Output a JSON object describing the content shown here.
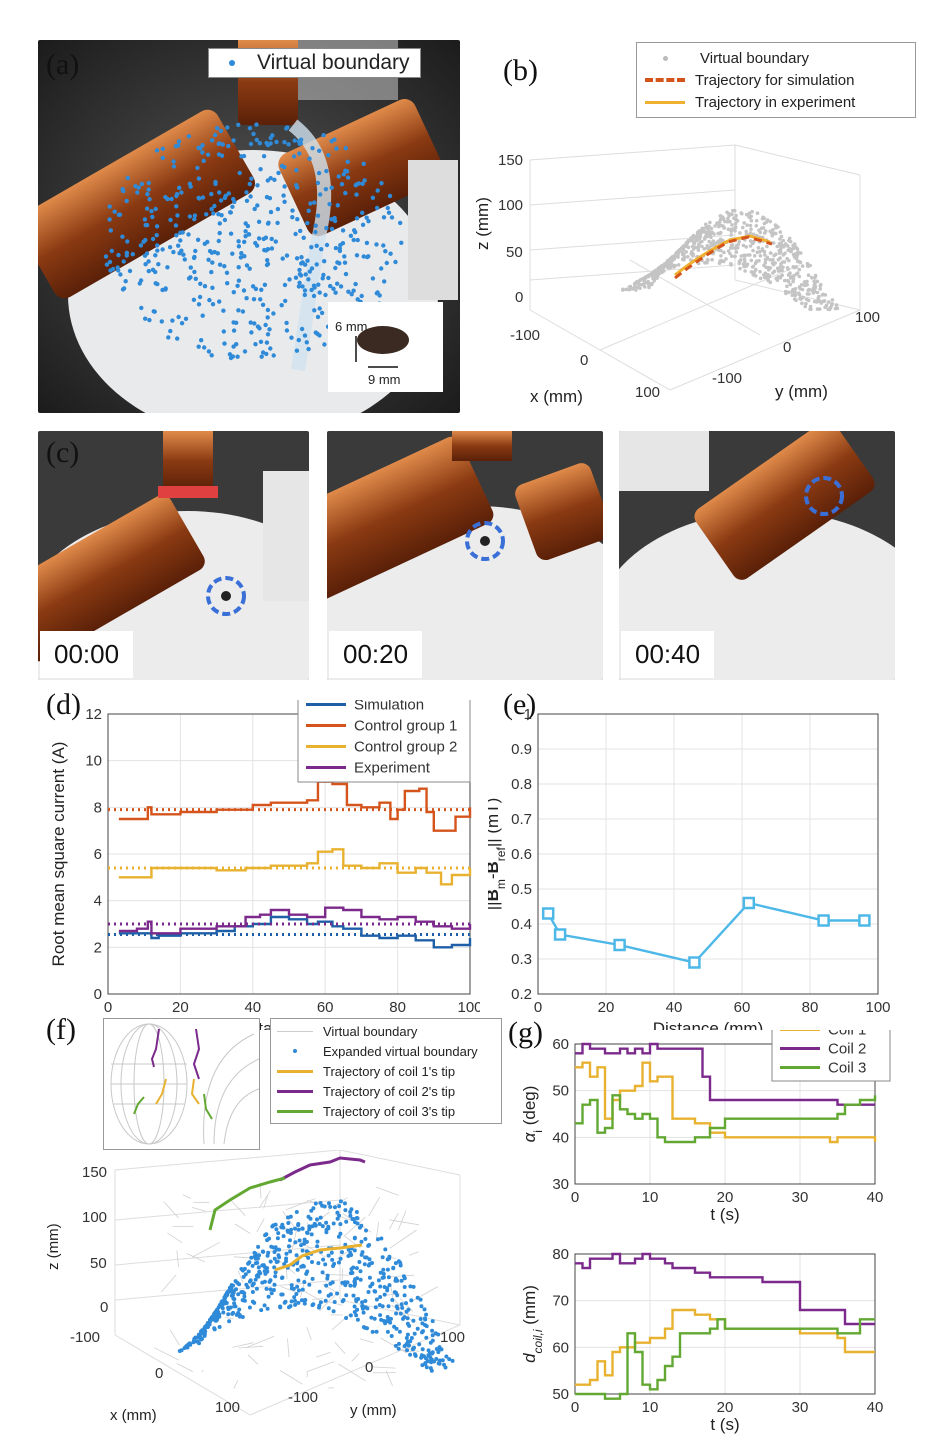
{
  "panels": {
    "a": {
      "label": "(a)",
      "legend": "Virtual boundary",
      "size_h": "6 mm",
      "size_w": "9 mm"
    },
    "b": {
      "label": "(b)",
      "legend": [
        "Virtual boundary",
        "Trajectory for simulation",
        "Trajectory in experiment"
      ],
      "zlabel": "z (mm)",
      "xlabel": "x (mm)",
      "ylabel": "y (mm)",
      "zticks": [
        "150",
        "100",
        "50",
        "0"
      ],
      "xticks": [
        "-100",
        "0",
        "100"
      ],
      "yticks": [
        "100",
        "0",
        "-100"
      ]
    },
    "c": {
      "label": "(c)",
      "times": [
        "00:00",
        "00:20",
        "00:40"
      ]
    },
    "d": {
      "label": "(d)"
    },
    "e": {
      "label": "(e)"
    },
    "f": {
      "label": "(f)",
      "legend": [
        "Virtual boundary",
        "Expanded virtual boundary",
        "Trajectory of coil 1's tip",
        "Trajectory of coil 2's tip",
        "Trajectory of coil 3's tip"
      ],
      "zlabel": "z (mm)",
      "xlabel": "x (mm)",
      "ylabel": "y (mm)",
      "zticks": [
        "150",
        "100",
        "50",
        "0",
        "-100"
      ],
      "xticks": [
        "0",
        "100"
      ],
      "yticks": [
        "100",
        "0",
        "-100"
      ]
    },
    "g": {
      "label": "(g)"
    }
  },
  "chart_data": [
    {
      "id": "d",
      "type": "line",
      "xlabel": "Distance (mm)",
      "ylabel": "Root mean square current (A)",
      "xlim": [
        0,
        100
      ],
      "ylim": [
        0,
        12
      ],
      "xticks": [
        0,
        20,
        40,
        60,
        80,
        100
      ],
      "yticks": [
        0,
        2,
        4,
        6,
        8,
        10,
        12
      ],
      "grid": true,
      "legend_position": "top-right",
      "series": [
        {
          "name": "Simulation",
          "color": "#1f5fa8",
          "dotted_level": 2.55,
          "x": [
            3,
            10,
            12,
            14,
            20,
            30,
            35,
            40,
            45,
            50,
            55,
            58,
            62,
            65,
            70,
            75,
            80,
            85,
            90,
            95,
            100
          ],
          "values": [
            2.6,
            2.6,
            2.4,
            2.5,
            2.6,
            2.7,
            2.9,
            3.0,
            3.3,
            3.2,
            3.0,
            3.1,
            2.9,
            2.8,
            2.5,
            2.4,
            2.5,
            2.3,
            2.0,
            2.1,
            2.4
          ]
        },
        {
          "name": "Control group 1",
          "color": "#d4541c",
          "dotted_level": 7.9,
          "x": [
            3,
            10,
            11,
            12,
            20,
            30,
            40,
            45,
            55,
            58,
            62,
            66,
            70,
            75,
            78,
            80,
            82,
            86,
            88,
            90,
            93,
            96,
            100
          ],
          "values": [
            7.5,
            7.5,
            8.0,
            7.7,
            7.8,
            7.9,
            8.1,
            8.2,
            8.3,
            9.1,
            9.0,
            8.1,
            8.0,
            8.2,
            7.5,
            7.9,
            8.7,
            8.8,
            7.8,
            7.0,
            7.0,
            7.6,
            8.0
          ]
        },
        {
          "name": "Control group 2",
          "color": "#e8b230",
          "dotted_level": 5.4,
          "x": [
            3,
            10,
            12,
            20,
            30,
            38,
            45,
            55,
            58,
            62,
            65,
            70,
            75,
            80,
            85,
            88,
            92,
            95,
            100
          ],
          "values": [
            5.0,
            5.0,
            5.4,
            5.4,
            5.3,
            5.4,
            5.5,
            5.6,
            6.1,
            6.2,
            5.5,
            5.4,
            5.6,
            5.2,
            5.4,
            5.2,
            4.7,
            5.1,
            5.4
          ]
        },
        {
          "name": "Experiment",
          "color": "#7b2a8b",
          "dotted_level": 3.0,
          "x": [
            3,
            8,
            11,
            12,
            20,
            30,
            38,
            42,
            45,
            50,
            55,
            60,
            65,
            70,
            75,
            80,
            85,
            90,
            95,
            100
          ],
          "values": [
            2.7,
            2.8,
            3.1,
            2.6,
            2.8,
            2.9,
            3.3,
            3.4,
            3.6,
            3.4,
            3.3,
            3.7,
            3.6,
            3.3,
            3.2,
            3.3,
            3.1,
            2.9,
            2.8,
            3.0
          ]
        }
      ]
    },
    {
      "id": "e",
      "type": "line",
      "xlabel": "Distance (mm)",
      "ylabel": "||B_m-B_ref|| (mT)",
      "xlim": [
        0,
        100
      ],
      "ylim": [
        0.2,
        1.0
      ],
      "xticks": [
        0,
        20,
        40,
        60,
        80,
        100
      ],
      "yticks": [
        0.2,
        0.3,
        0.4,
        0.5,
        0.6,
        0.7,
        0.8,
        0.9,
        1.0
      ],
      "grid": true,
      "series": [
        {
          "color": "#4db8e8",
          "marker": "square",
          "x": [
            3,
            6.5,
            24,
            46,
            62,
            84,
            96
          ],
          "values": [
            0.43,
            0.37,
            0.34,
            0.29,
            0.46,
            0.41,
            0.41
          ]
        }
      ]
    },
    {
      "id": "g1",
      "type": "line",
      "xlabel": "t (s)",
      "ylabel": "α_i (deg)",
      "xlim": [
        0,
        40
      ],
      "ylim": [
        30,
        60
      ],
      "xticks": [
        0,
        10,
        20,
        30,
        40
      ],
      "yticks": [
        30,
        40,
        50,
        60
      ],
      "grid": true,
      "legend_position": "top-right",
      "series": [
        {
          "name": "Coil 1",
          "color": "#e8b230",
          "x": [
            0,
            1,
            2,
            3,
            4,
            5,
            6,
            8,
            9,
            10,
            11,
            12,
            13,
            14,
            16,
            18,
            20,
            25,
            30,
            34,
            35,
            36,
            40
          ],
          "values": [
            55,
            56,
            53,
            55,
            44,
            48,
            50,
            51,
            56,
            52,
            53,
            53,
            44,
            44,
            43,
            41,
            40,
            40,
            40,
            39,
            40,
            40,
            39
          ]
        },
        {
          "name": "Coil 2",
          "color": "#7b2a8b",
          "x": [
            0,
            1,
            2,
            3,
            4,
            6,
            7,
            8,
            9,
            10,
            11,
            12,
            16,
            17,
            18,
            20,
            30,
            35,
            36,
            40
          ],
          "values": [
            58,
            60,
            59,
            59,
            58,
            59,
            58,
            59,
            58,
            60,
            59,
            59,
            59,
            53,
            48,
            48,
            48,
            47,
            47,
            47
          ]
        },
        {
          "name": "Coil 3",
          "color": "#62a832",
          "x": [
            0,
            1,
            2,
            3,
            4,
            5,
            6,
            7,
            8,
            9,
            10,
            11,
            12,
            14,
            15,
            16,
            18,
            20,
            25,
            30,
            34,
            35,
            36,
            38,
            40
          ],
          "values": [
            43,
            47,
            48,
            41,
            42,
            49,
            46,
            45,
            44,
            45,
            44,
            40,
            39,
            39,
            39,
            40,
            42,
            44,
            44,
            44,
            44,
            45,
            47,
            48,
            49
          ]
        }
      ]
    },
    {
      "id": "g2",
      "type": "line",
      "xlabel": "t (s)",
      "ylabel": "d_coil,i (mm)",
      "xlim": [
        0,
        40
      ],
      "ylim": [
        50,
        80
      ],
      "xticks": [
        0,
        10,
        20,
        30,
        40
      ],
      "yticks": [
        50,
        60,
        70,
        80
      ],
      "grid": true,
      "series": [
        {
          "name": "Coil 1",
          "color": "#e8b230",
          "x": [
            0,
            1,
            2,
            3,
            4,
            5,
            6,
            8,
            10,
            12,
            13,
            14,
            16,
            18,
            20,
            25,
            30,
            35,
            36,
            40
          ],
          "values": [
            52,
            52,
            53,
            57,
            54,
            59,
            60,
            61,
            62,
            64,
            68,
            68,
            67,
            66,
            64,
            64,
            63,
            62,
            59,
            59
          ]
        },
        {
          "name": "Coil 2",
          "color": "#7b2a8b",
          "x": [
            0,
            1,
            2,
            3,
            5,
            6,
            8,
            9,
            10,
            12,
            13,
            16,
            18,
            20,
            25,
            28,
            30,
            35,
            36,
            40
          ],
          "values": [
            78,
            77,
            79,
            79,
            80,
            78,
            79,
            80,
            79,
            78,
            77,
            76,
            75,
            75,
            74,
            74,
            68,
            68,
            65,
            65
          ]
        },
        {
          "name": "Coil 3",
          "color": "#62a832",
          "x": [
            0,
            2,
            4,
            6,
            7,
            8,
            9,
            10,
            11,
            12,
            13,
            14,
            16,
            18,
            19,
            20,
            25,
            30,
            35,
            36,
            38,
            40
          ],
          "values": [
            50,
            50,
            49,
            50,
            63,
            59,
            52,
            51,
            53,
            56,
            58,
            63,
            63,
            64,
            66,
            64,
            64,
            64,
            63,
            63,
            66,
            66
          ]
        }
      ]
    }
  ]
}
